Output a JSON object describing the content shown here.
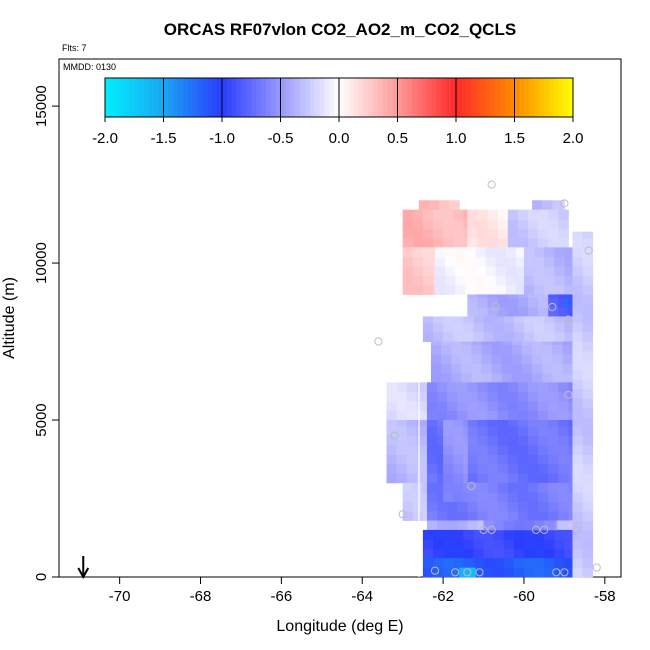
{
  "chart_data": {
    "type": "heatmap",
    "title": "ORCAS RF07vlon CO2_AO2_m_CO2_QCLS",
    "flights_note": "Flts: 7",
    "date_note": "MMDD: 0130",
    "xlabel": "Longitude (deg E)",
    "ylabel": "Altitude (m)",
    "xlim": [
      -71.5,
      -57.6
    ],
    "ylim": [
      0,
      16500
    ],
    "x_ticks": [
      -70,
      -68,
      -66,
      -64,
      -62,
      -60,
      -58
    ],
    "y_ticks": [
      0,
      5000,
      10000,
      15000
    ],
    "colorbar": {
      "range": [
        -2.0,
        2.0
      ],
      "ticks": [
        "-2.0",
        "-1.5",
        "-1.0",
        "-0.5",
        "0.0",
        "0.5",
        "1.0",
        "1.5",
        "2.0"
      ],
      "colors": {
        "c_m2": "#00f0ff",
        "c_m15": "#1aa6f2",
        "c_m1": "#2a3cff",
        "c_m05": "#9898ff",
        "c_0": "#ffffff",
        "c_p05": "#ff9999",
        "c_p1": "#ff2a2a",
        "c_p15": "#ff8a00",
        "c_p2": "#ffff00"
      }
    },
    "arrow_marker_longitude": -70.9,
    "cells": {
      "dx": 0.25,
      "dy": 300,
      "bands": [
        {
          "y0": 11700,
          "y1": 12000,
          "x0": -62.6,
          "x1": -61.6,
          "v": 0.3
        },
        {
          "y0": 11700,
          "y1": 12000,
          "x0": -59.8,
          "x1": -59.0,
          "v": -0.3
        },
        {
          "y0": 10500,
          "y1": 11700,
          "x0": -63.0,
          "x1": -61.4,
          "v": 0.35
        },
        {
          "y0": 10500,
          "y1": 11700,
          "x0": -61.4,
          "x1": -60.4,
          "v": 0.1
        },
        {
          "y0": 10500,
          "y1": 11700,
          "x0": -60.4,
          "x1": -58.9,
          "v": -0.25
        },
        {
          "y0": 9000,
          "y1": 10500,
          "x0": -63.0,
          "x1": -62.2,
          "v": 0.25
        },
        {
          "y0": 9000,
          "y1": 10500,
          "x0": -62.2,
          "x1": -60.0,
          "v": -0.05
        },
        {
          "y0": 9000,
          "y1": 10500,
          "x0": -60.0,
          "x1": -58.8,
          "v": -0.35
        },
        {
          "y0": 8300,
          "y1": 9000,
          "x0": -61.4,
          "x1": -59.4,
          "v": -0.4
        },
        {
          "y0": 8300,
          "y1": 9000,
          "x0": -59.4,
          "x1": -58.8,
          "v": -0.8
        },
        {
          "y0": 7500,
          "y1": 8300,
          "x0": -62.5,
          "x1": -58.8,
          "v": -0.3
        },
        {
          "y0": 6200,
          "y1": 7500,
          "x0": -62.3,
          "x1": -58.8,
          "v": -0.4
        },
        {
          "y0": 5000,
          "y1": 6200,
          "x0": -63.4,
          "x1": -62.4,
          "v": -0.2
        },
        {
          "y0": 5000,
          "y1": 6200,
          "x0": -62.4,
          "x1": -58.8,
          "v": -0.55
        },
        {
          "y0": 3000,
          "y1": 5000,
          "x0": -63.4,
          "x1": -62.4,
          "v": -0.35
        },
        {
          "y0": 3000,
          "y1": 5000,
          "x0": -62.4,
          "x1": -58.8,
          "v": -0.7
        },
        {
          "y0": 1800,
          "y1": 3000,
          "x0": -63.0,
          "x1": -62.4,
          "v": -0.3
        },
        {
          "y0": 1800,
          "y1": 3000,
          "x0": -62.4,
          "x1": -58.8,
          "v": -0.65
        },
        {
          "y0": 1500,
          "y1": 1800,
          "x0": -62.4,
          "x1": -58.8,
          "v": -0.35
        },
        {
          "y0": 600,
          "y1": 1500,
          "x0": -62.5,
          "x1": -58.8,
          "v": -0.95
        },
        {
          "y0": 0,
          "y1": 600,
          "x0": -62.5,
          "x1": -58.5,
          "v": -1.15
        },
        {
          "y0": 0,
          "y1": 11000,
          "x0": -58.8,
          "x1": -58.3,
          "v": -0.25
        }
      ],
      "patches": [
        {
          "y0": 2400,
          "y1": 5000,
          "x0": -62.0,
          "x1": -61.4,
          "v": -0.55
        },
        {
          "y0": 8600,
          "y1": 8900,
          "x0": -59.0,
          "x1": -58.9,
          "v": -1.2
        },
        {
          "y0": 0,
          "y1": 300,
          "x0": -61.6,
          "x1": -61.2,
          "v": -1.6
        },
        {
          "y0": 1500,
          "y1": 1800,
          "x0": -61.0,
          "x1": -59.2,
          "v": -0.6
        }
      ]
    },
    "sample_points": [
      [
        -60.8,
        12500
      ],
      [
        -59.0,
        11900
      ],
      [
        -58.4,
        10400
      ],
      [
        -63.6,
        7500
      ],
      [
        -59.3,
        8600
      ],
      [
        -58.9,
        8200
      ],
      [
        -60.7,
        8600
      ],
      [
        -63.2,
        4500
      ],
      [
        -58.9,
        5800
      ],
      [
        -61.3,
        2900
      ],
      [
        -63.0,
        2000
      ],
      [
        -60.8,
        1500
      ],
      [
        -61.0,
        1500
      ],
      [
        -59.7,
        1500
      ],
      [
        -59.5,
        1500
      ],
      [
        -58.7,
        1500
      ],
      [
        -62.2,
        200
      ],
      [
        -61.7,
        150
      ],
      [
        -61.4,
        150
      ],
      [
        -61.1,
        150
      ],
      [
        -59.2,
        150
      ],
      [
        -59.0,
        150
      ],
      [
        -58.2,
        300
      ]
    ]
  }
}
